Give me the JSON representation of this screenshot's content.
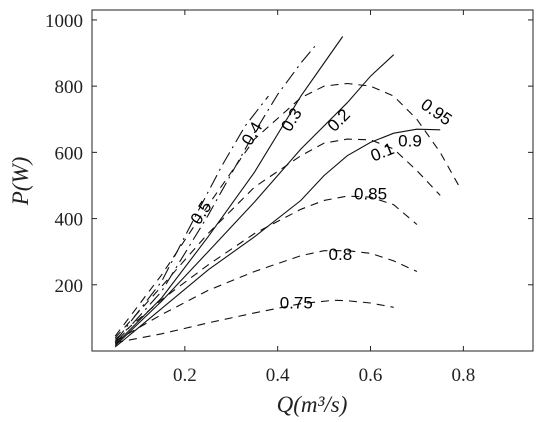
{
  "chart_data": {
    "type": "line",
    "title": "",
    "xlabel": "Q(m³/s)",
    "ylabel": "P(W)",
    "xlim": [
      0.0,
      0.95
    ],
    "ylim": [
      0,
      1030
    ],
    "xticks": [
      0.2,
      0.4,
      0.6,
      0.8
    ],
    "yticks": [
      200,
      400,
      600,
      800,
      1000
    ],
    "grid": false,
    "legend": "none",
    "series": [
      {
        "name": "0.75",
        "style": "dashed",
        "label_at": [
          0.44,
          128
        ],
        "x": [
          0.05,
          0.15,
          0.25,
          0.35,
          0.45,
          0.52,
          0.55,
          0.6,
          0.65
        ],
        "y": [
          25,
          52,
          85,
          115,
          143,
          153,
          152,
          145,
          132
        ]
      },
      {
        "name": "0.8",
        "style": "dashed",
        "label_at": [
          0.535,
          275
        ],
        "x": [
          0.05,
          0.15,
          0.25,
          0.35,
          0.45,
          0.5,
          0.55,
          0.6,
          0.65,
          0.7
        ],
        "y": [
          30,
          110,
          183,
          240,
          288,
          303,
          303,
          295,
          272,
          240
        ]
      },
      {
        "name": "0.85",
        "style": "dashed",
        "label_at": [
          0.6,
          458
        ],
        "x": [
          0.05,
          0.15,
          0.25,
          0.35,
          0.45,
          0.5,
          0.55,
          0.6,
          0.65,
          0.7
        ],
        "y": [
          35,
          155,
          260,
          355,
          428,
          455,
          468,
          465,
          442,
          382
        ]
      },
      {
        "name": "0.9",
        "style": "dashed",
        "label_at": [
          0.685,
          618
        ],
        "x": [
          0.05,
          0.15,
          0.25,
          0.35,
          0.45,
          0.5,
          0.55,
          0.6,
          0.65,
          0.7,
          0.75
        ],
        "y": [
          40,
          195,
          355,
          495,
          590,
          628,
          640,
          638,
          610,
          545,
          470
        ]
      },
      {
        "name": "0.95",
        "style": "dashed",
        "label_at": [
          0.735,
          708
        ],
        "x": [
          0.05,
          0.15,
          0.25,
          0.35,
          0.45,
          0.5,
          0.55,
          0.6,
          0.65,
          0.7,
          0.75,
          0.79
        ],
        "y": [
          45,
          230,
          440,
          640,
          765,
          800,
          808,
          800,
          770,
          700,
          600,
          500
        ]
      },
      {
        "name": "0.1",
        "style": "solid",
        "label_at": [
          0.63,
          585
        ],
        "x": [
          0.05,
          0.15,
          0.25,
          0.35,
          0.45,
          0.5,
          0.55,
          0.6,
          0.65,
          0.7,
          0.75
        ],
        "y": [
          12,
          128,
          245,
          345,
          455,
          530,
          590,
          630,
          658,
          670,
          668
        ]
      },
      {
        "name": "0.2",
        "style": "solid",
        "label_at": [
          0.54,
          685
        ],
        "x": [
          0.05,
          0.15,
          0.25,
          0.35,
          0.45,
          0.55,
          0.6,
          0.65
        ],
        "y": [
          16,
          150,
          300,
          450,
          610,
          750,
          830,
          895
        ]
      },
      {
        "name": "0.3",
        "style": "solid",
        "label_at": [
          0.44,
          690
        ],
        "x": [
          0.05,
          0.15,
          0.25,
          0.35,
          0.45,
          0.5,
          0.54
        ],
        "y": [
          20,
          160,
          345,
          540,
          770,
          870,
          950
        ]
      },
      {
        "name": "0.4",
        "style": "dashdot",
        "label_at": [
          0.355,
          648
        ],
        "x": [
          0.05,
          0.15,
          0.25,
          0.35,
          0.4,
          0.45,
          0.48
        ],
        "y": [
          24,
          180,
          410,
          660,
          775,
          870,
          920
        ]
      },
      {
        "name": "0.5",
        "style": "dashdot",
        "label_at": [
          0.245,
          408
        ],
        "x": [
          0.05,
          0.15,
          0.22,
          0.28,
          0.33,
          0.38
        ],
        "y": [
          28,
          210,
          400,
          560,
          680,
          770
        ]
      }
    ]
  }
}
